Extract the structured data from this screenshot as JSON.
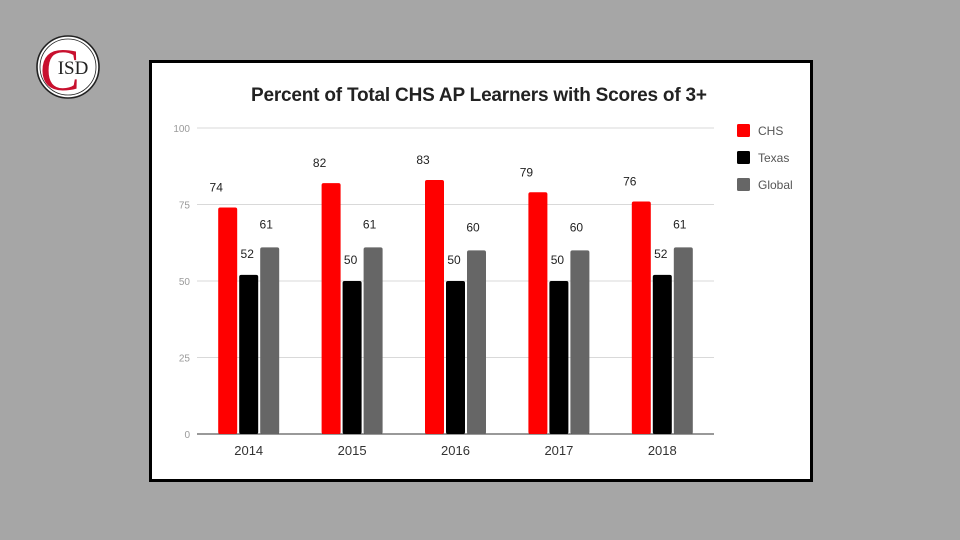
{
  "logo": {
    "text": "ISD",
    "letter": "C",
    "color": "#c8102e"
  },
  "chart_data": {
    "type": "bar",
    "title": "Percent of Total CHS AP Learners with Scores of 3+",
    "xlabel": "",
    "ylabel": "",
    "categories": [
      "2014",
      "2015",
      "2016",
      "2017",
      "2018"
    ],
    "series": [
      {
        "name": "CHS",
        "color": "#ff0000",
        "values": [
          74,
          82,
          83,
          79,
          76
        ]
      },
      {
        "name": "Texas",
        "color": "#000000",
        "values": [
          52,
          50,
          50,
          50,
          52
        ]
      },
      {
        "name": "Global",
        "color": "#666666",
        "values": [
          61,
          61,
          60,
          60,
          61
        ]
      }
    ],
    "ylim": [
      0,
      100
    ],
    "yticks": [
      0,
      25,
      50,
      75,
      100
    ],
    "grid": true,
    "legend": "right",
    "data_labels": true
  }
}
